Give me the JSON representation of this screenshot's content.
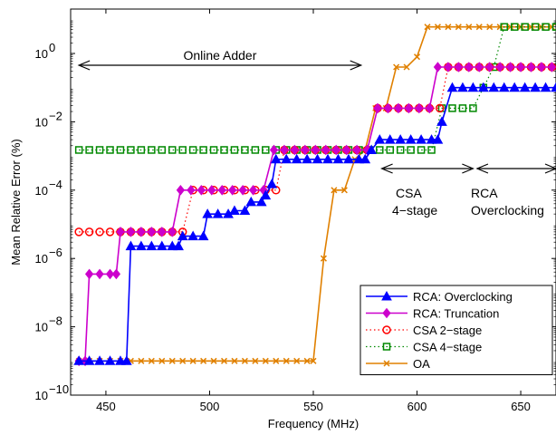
{
  "chart_data": {
    "type": "line",
    "xlabel": "Frequency (MHz)",
    "ylabel": "Mean Relative Error (%)",
    "xlim": [
      433,
      667
    ],
    "ylim_log10": [
      -10,
      1.3
    ],
    "y_scale": "log",
    "x_ticks": [
      450,
      500,
      550,
      600,
      650
    ],
    "y_ticks": [
      {
        "exp": 0,
        "label": "10",
        "sup": "0"
      },
      {
        "exp": -2,
        "label": "10",
        "sup": "−2"
      },
      {
        "exp": -4,
        "label": "10",
        "sup": "−4"
      },
      {
        "exp": -6,
        "label": "10",
        "sup": "−6"
      },
      {
        "exp": -8,
        "label": "10",
        "sup": "−8"
      },
      {
        "exp": -10,
        "label": "10",
        "sup": "−10"
      }
    ],
    "legend_position": "bottom-right",
    "annotations": {
      "online_adder": "Online Adder",
      "csa_line1": "CSA",
      "csa_line2": "4−stage",
      "rca_line1": "RCA",
      "rca_line2": "Overclocking"
    },
    "series": [
      {
        "name": "RCA: Overclocking",
        "color": "#0000ff",
        "marker": "triangle",
        "line": "solid",
        "points": [
          [
            437,
            1e-09
          ],
          [
            442,
            1e-09
          ],
          [
            447,
            1e-09
          ],
          [
            452,
            1e-09
          ],
          [
            457,
            1e-09
          ],
          [
            460,
            1e-09
          ],
          [
            462,
            2.3e-06
          ],
          [
            467,
            2.3e-06
          ],
          [
            472,
            2.3e-06
          ],
          [
            477,
            2.3e-06
          ],
          [
            482,
            2.3e-06
          ],
          [
            485,
            2.3e-06
          ],
          [
            487,
            4.5e-06
          ],
          [
            492,
            4.5e-06
          ],
          [
            497,
            4.5e-06
          ],
          [
            499,
            2e-05
          ],
          [
            504,
            2e-05
          ],
          [
            509,
            2e-05
          ],
          [
            512,
            2.5e-05
          ],
          [
            517,
            2.5e-05
          ],
          [
            520,
            4.5e-05
          ],
          [
            525,
            4.5e-05
          ],
          [
            527,
            7e-05
          ],
          [
            530,
            0.00015
          ],
          [
            532,
            0.0008
          ],
          [
            537,
            0.0008
          ],
          [
            542,
            0.0008
          ],
          [
            547,
            0.0008
          ],
          [
            552,
            0.0008
          ],
          [
            557,
            0.0008
          ],
          [
            562,
            0.0008
          ],
          [
            567,
            0.0008
          ],
          [
            572,
            0.0008
          ],
          [
            575,
            0.0008
          ],
          [
            578,
            0.0015
          ],
          [
            582,
            0.003
          ],
          [
            587,
            0.003
          ],
          [
            592,
            0.003
          ],
          [
            597,
            0.003
          ],
          [
            602,
            0.003
          ],
          [
            607,
            0.003
          ],
          [
            610,
            0.003
          ],
          [
            612,
            0.01
          ],
          [
            617,
            0.1
          ],
          [
            622,
            0.1
          ],
          [
            627,
            0.1
          ],
          [
            632,
            0.1
          ],
          [
            637,
            0.1
          ],
          [
            642,
            0.1
          ],
          [
            647,
            0.1
          ],
          [
            652,
            0.1
          ],
          [
            657,
            0.1
          ],
          [
            662,
            0.1
          ],
          [
            667,
            0.1
          ]
        ]
      },
      {
        "name": "RCA: Truncation",
        "color": "#cc00cc",
        "marker": "diamond",
        "line": "solid",
        "points": [
          [
            437,
            1e-09
          ],
          [
            440,
            1e-09
          ],
          [
            442,
            3.5e-07
          ],
          [
            447,
            3.5e-07
          ],
          [
            452,
            3.5e-07
          ],
          [
            455,
            3.5e-07
          ],
          [
            457,
            6e-06
          ],
          [
            462,
            6e-06
          ],
          [
            467,
            6e-06
          ],
          [
            472,
            6e-06
          ],
          [
            477,
            6e-06
          ],
          [
            482,
            6e-06
          ],
          [
            486,
            0.0001
          ],
          [
            491,
            0.0001
          ],
          [
            496,
            0.0001
          ],
          [
            501,
            0.0001
          ],
          [
            506,
            0.0001
          ],
          [
            511,
            0.0001
          ],
          [
            516,
            0.0001
          ],
          [
            521,
            0.0001
          ],
          [
            526,
            0.0001
          ],
          [
            531,
            0.0015
          ],
          [
            536,
            0.0015
          ],
          [
            541,
            0.0015
          ],
          [
            546,
            0.0015
          ],
          [
            551,
            0.0015
          ],
          [
            556,
            0.0015
          ],
          [
            561,
            0.0015
          ],
          [
            566,
            0.0015
          ],
          [
            571,
            0.0015
          ],
          [
            576,
            0.0015
          ],
          [
            581,
            0.025
          ],
          [
            586,
            0.025
          ],
          [
            591,
            0.025
          ],
          [
            596,
            0.025
          ],
          [
            601,
            0.025
          ],
          [
            606,
            0.025
          ],
          [
            610,
            0.4
          ],
          [
            615,
            0.4
          ],
          [
            620,
            0.4
          ],
          [
            625,
            0.4
          ],
          [
            630,
            0.4
          ],
          [
            635,
            0.4
          ],
          [
            640,
            0.4
          ],
          [
            645,
            0.4
          ],
          [
            650,
            0.4
          ],
          [
            655,
            0.4
          ],
          [
            660,
            0.4
          ],
          [
            665,
            0.4
          ]
        ]
      },
      {
        "name": "CSA 2−stage",
        "color": "#ff0000",
        "marker": "circle",
        "line": "dotted",
        "points": [
          [
            437,
            6e-06
          ],
          [
            442,
            6e-06
          ],
          [
            447,
            6e-06
          ],
          [
            452,
            6e-06
          ],
          [
            457,
            6e-06
          ],
          [
            462,
            6e-06
          ],
          [
            467,
            6e-06
          ],
          [
            472,
            6e-06
          ],
          [
            477,
            6e-06
          ],
          [
            482,
            6e-06
          ],
          [
            487,
            6e-06
          ],
          [
            492,
            0.0001
          ],
          [
            497,
            0.0001
          ],
          [
            502,
            0.0001
          ],
          [
            507,
            0.0001
          ],
          [
            512,
            0.0001
          ],
          [
            517,
            0.0001
          ],
          [
            522,
            0.0001
          ],
          [
            527,
            0.0001
          ],
          [
            532,
            0.0001
          ],
          [
            536,
            0.0015
          ],
          [
            541,
            0.0015
          ],
          [
            546,
            0.0015
          ],
          [
            551,
            0.0015
          ],
          [
            556,
            0.0015
          ],
          [
            561,
            0.0015
          ],
          [
            566,
            0.0015
          ],
          [
            571,
            0.0015
          ],
          [
            576,
            0.0015
          ],
          [
            581,
            0.025
          ],
          [
            586,
            0.025
          ],
          [
            591,
            0.025
          ],
          [
            596,
            0.025
          ],
          [
            601,
            0.025
          ],
          [
            606,
            0.025
          ],
          [
            611,
            0.025
          ],
          [
            615,
            0.4
          ],
          [
            620,
            0.4
          ],
          [
            625,
            0.4
          ],
          [
            630,
            0.4
          ],
          [
            635,
            0.4
          ],
          [
            640,
            0.4
          ],
          [
            645,
            0.4
          ],
          [
            650,
            0.4
          ],
          [
            655,
            0.4
          ],
          [
            660,
            0.4
          ],
          [
            665,
            0.4
          ]
        ]
      },
      {
        "name": "CSA 4−stage",
        "color": "#008800",
        "marker": "square",
        "line": "dotted",
        "points": [
          [
            437,
            0.0015
          ],
          [
            442,
            0.0015
          ],
          [
            447,
            0.0015
          ],
          [
            452,
            0.0015
          ],
          [
            457,
            0.0015
          ],
          [
            462,
            0.0015
          ],
          [
            467,
            0.0015
          ],
          [
            472,
            0.0015
          ],
          [
            477,
            0.0015
          ],
          [
            482,
            0.0015
          ],
          [
            487,
            0.0015
          ],
          [
            492,
            0.0015
          ],
          [
            497,
            0.0015
          ],
          [
            502,
            0.0015
          ],
          [
            507,
            0.0015
          ],
          [
            512,
            0.0015
          ],
          [
            517,
            0.0015
          ],
          [
            522,
            0.0015
          ],
          [
            527,
            0.0015
          ],
          [
            532,
            0.0015
          ],
          [
            537,
            0.0015
          ],
          [
            542,
            0.0015
          ],
          [
            547,
            0.0015
          ],
          [
            552,
            0.0015
          ],
          [
            557,
            0.0015
          ],
          [
            562,
            0.0015
          ],
          [
            567,
            0.0015
          ],
          [
            572,
            0.0015
          ],
          [
            577,
            0.0015
          ],
          [
            582,
            0.0015
          ],
          [
            587,
            0.0015
          ],
          [
            592,
            0.0015
          ],
          [
            597,
            0.0015
          ],
          [
            602,
            0.0015
          ],
          [
            607,
            0.0015
          ],
          [
            612,
            0.025
          ],
          [
            617,
            0.025
          ],
          [
            622,
            0.025
          ],
          [
            627,
            0.025
          ],
          [
            632,
            0.1
          ],
          [
            637,
            0.4
          ],
          [
            642,
            6
          ],
          [
            647,
            6
          ],
          [
            652,
            6
          ],
          [
            657,
            6
          ],
          [
            662,
            6
          ],
          [
            667,
            6
          ]
        ]
      },
      {
        "name": "OA",
        "color": "#e08000",
        "marker": "x",
        "line": "solid",
        "points": [
          [
            437,
            1e-09
          ],
          [
            442,
            1e-09
          ],
          [
            447,
            1e-09
          ],
          [
            452,
            1e-09
          ],
          [
            457,
            1e-09
          ],
          [
            462,
            1e-09
          ],
          [
            467,
            1e-09
          ],
          [
            472,
            1e-09
          ],
          [
            477,
            1e-09
          ],
          [
            482,
            1e-09
          ],
          [
            487,
            1e-09
          ],
          [
            492,
            1e-09
          ],
          [
            497,
            1e-09
          ],
          [
            502,
            1e-09
          ],
          [
            507,
            1e-09
          ],
          [
            512,
            1e-09
          ],
          [
            517,
            1e-09
          ],
          [
            522,
            1e-09
          ],
          [
            527,
            1e-09
          ],
          [
            532,
            1e-09
          ],
          [
            537,
            1e-09
          ],
          [
            542,
            1e-09
          ],
          [
            547,
            1e-09
          ],
          [
            550,
            1e-09
          ],
          [
            555,
            1e-06
          ],
          [
            560,
            0.0001
          ],
          [
            565,
            0.0001
          ],
          [
            570,
            0.0008
          ],
          [
            575,
            0.0015
          ],
          [
            580,
            0.025
          ],
          [
            585,
            0.025
          ],
          [
            590,
            0.4
          ],
          [
            595,
            0.4
          ],
          [
            600,
            0.8
          ],
          [
            605,
            6
          ],
          [
            610,
            6
          ],
          [
            615,
            6
          ],
          [
            620,
            6
          ],
          [
            625,
            6
          ],
          [
            630,
            6
          ],
          [
            635,
            6
          ],
          [
            640,
            6
          ],
          [
            645,
            6
          ],
          [
            650,
            6
          ],
          [
            655,
            6
          ],
          [
            660,
            6
          ],
          [
            665,
            6
          ]
        ]
      }
    ]
  }
}
